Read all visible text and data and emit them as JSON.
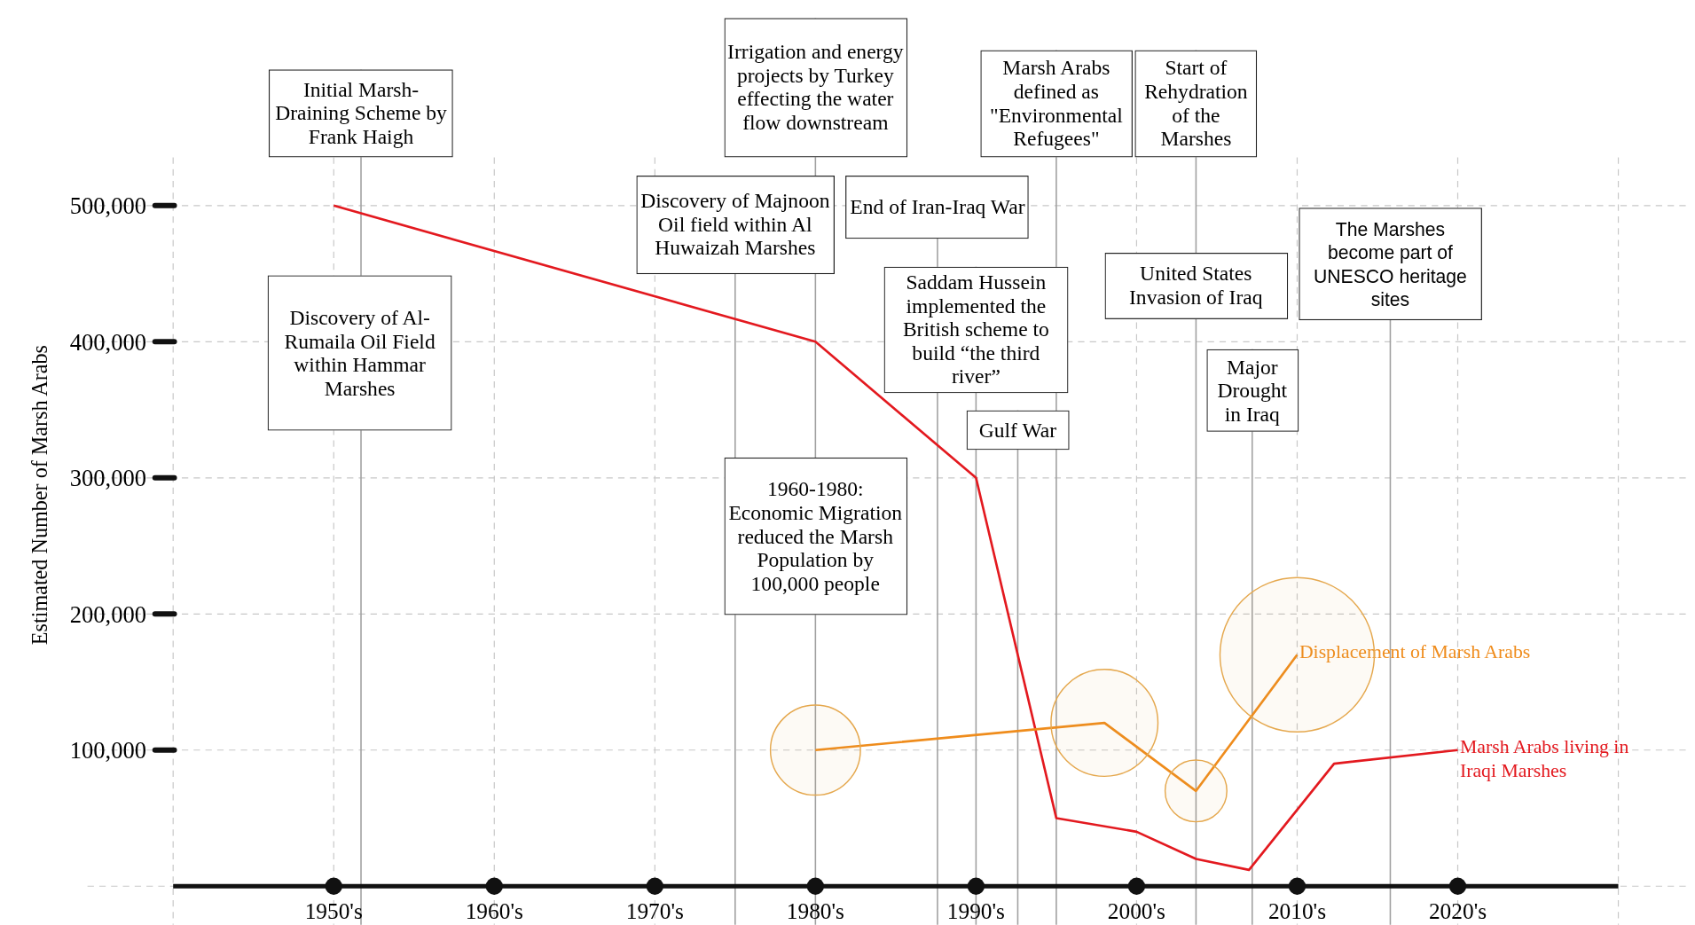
{
  "chart_data": {
    "type": "line",
    "ylabel": "Estimated Number of Marsh Arabs",
    "xlim": [
      1935,
      2034
    ],
    "ylim": [
      0,
      500000
    ],
    "xticks": [
      {
        "value": 1940,
        "label": null
      },
      {
        "value": 1950,
        "label": "1950's"
      },
      {
        "value": 1960,
        "label": "1960's"
      },
      {
        "value": 1970,
        "label": "1970's"
      },
      {
        "value": 1980,
        "label": "1980's"
      },
      {
        "value": 1990,
        "label": "1990's"
      },
      {
        "value": 2000,
        "label": "2000's"
      },
      {
        "value": 2010,
        "label": "2010's"
      },
      {
        "value": 2020,
        "label": "2020's"
      },
      {
        "value": 2030,
        "label": null
      }
    ],
    "yticks": [
      {
        "value": 0,
        "label": null
      },
      {
        "value": 100000,
        "label": "100,000"
      },
      {
        "value": 200000,
        "label": "200,000"
      },
      {
        "value": 300000,
        "label": "300,000"
      },
      {
        "value": 400000,
        "label": "400,000"
      },
      {
        "value": 500000,
        "label": "500,000"
      }
    ],
    "grid": true,
    "series": [
      {
        "name": "Marsh Arabs living in Iraqi Marshes",
        "color": "#e3191f",
        "x": [
          1950,
          1980,
          1990,
          1995,
          2000,
          2003.7,
          2007,
          2012.3,
          2020
        ],
        "values": [
          500000,
          400000,
          300000,
          50000,
          40000,
          20000,
          12000,
          90000,
          100000
        ]
      },
      {
        "name": "Displacement of Marsh Arabs",
        "color": "#ef8c1c",
        "x": [
          1980,
          1998,
          2003.7,
          2010
        ],
        "values": [
          100000,
          120000,
          70000,
          170000
        ]
      },
      {
        "type": "bubble",
        "color": "#e5a84e",
        "x": [
          1980,
          1998,
          2003.7,
          2010
        ],
        "values": [
          100000,
          120000,
          70000,
          170000
        ],
        "sizes": [
          0.34,
          0.48,
          0.16,
          1
        ]
      }
    ],
    "ref_lines": [
      {
        "axis": "x",
        "value": 1951.7,
        "label": "Initial Marsh-Draining Scheme by Frank Haigh",
        "color": "#a0a0a0"
      },
      {
        "axis": "x",
        "value": 1975,
        "label": "Discovery of Majnoon Oil field within Al Huwaizah Marshes",
        "color": "#a0a0a0"
      },
      {
        "axis": "x",
        "value": 1980,
        "label": "Irrigation and energy projects by Turkey effecting the water flow downstream",
        "color": "#a0a0a0"
      },
      {
        "axis": "x",
        "value": 1987.6,
        "label": "End of Iran-Iraq War",
        "color": "#a0a0a0"
      },
      {
        "axis": "x",
        "value": 1990,
        "label": "Saddam Hussein implemented the British scheme to build “the third river”",
        "color": "#a0a0a0"
      },
      {
        "axis": "x",
        "value": 1992.6,
        "label": "Gulf War",
        "color": "#a0a0a0"
      },
      {
        "axis": "x",
        "value": 1995,
        "label": "Marsh Arabs defined as \"Environmental Refugees\"",
        "color": "#a0a0a0"
      },
      {
        "axis": "x",
        "value": 2003.7,
        "label": "Start of Rehydration of the Marshes",
        "color": "#a0a0a0"
      },
      {
        "axis": "x",
        "value": 2007.2,
        "label": "Major Drought in Iraq",
        "color": "#a0a0a0"
      },
      {
        "axis": "x",
        "value": 2015.8,
        "label": "The Marshes become part of UNESCO heritage sites",
        "color": "#a0a0a0"
      }
    ],
    "annotations": [
      "Discovery of Al-Rumaila Oil Field within Hammar Marshes",
      "1960-1980: Economic Migration reduced the Marsh Population by 100,000 people",
      "United States Invasion of Iraq"
    ]
  }
}
